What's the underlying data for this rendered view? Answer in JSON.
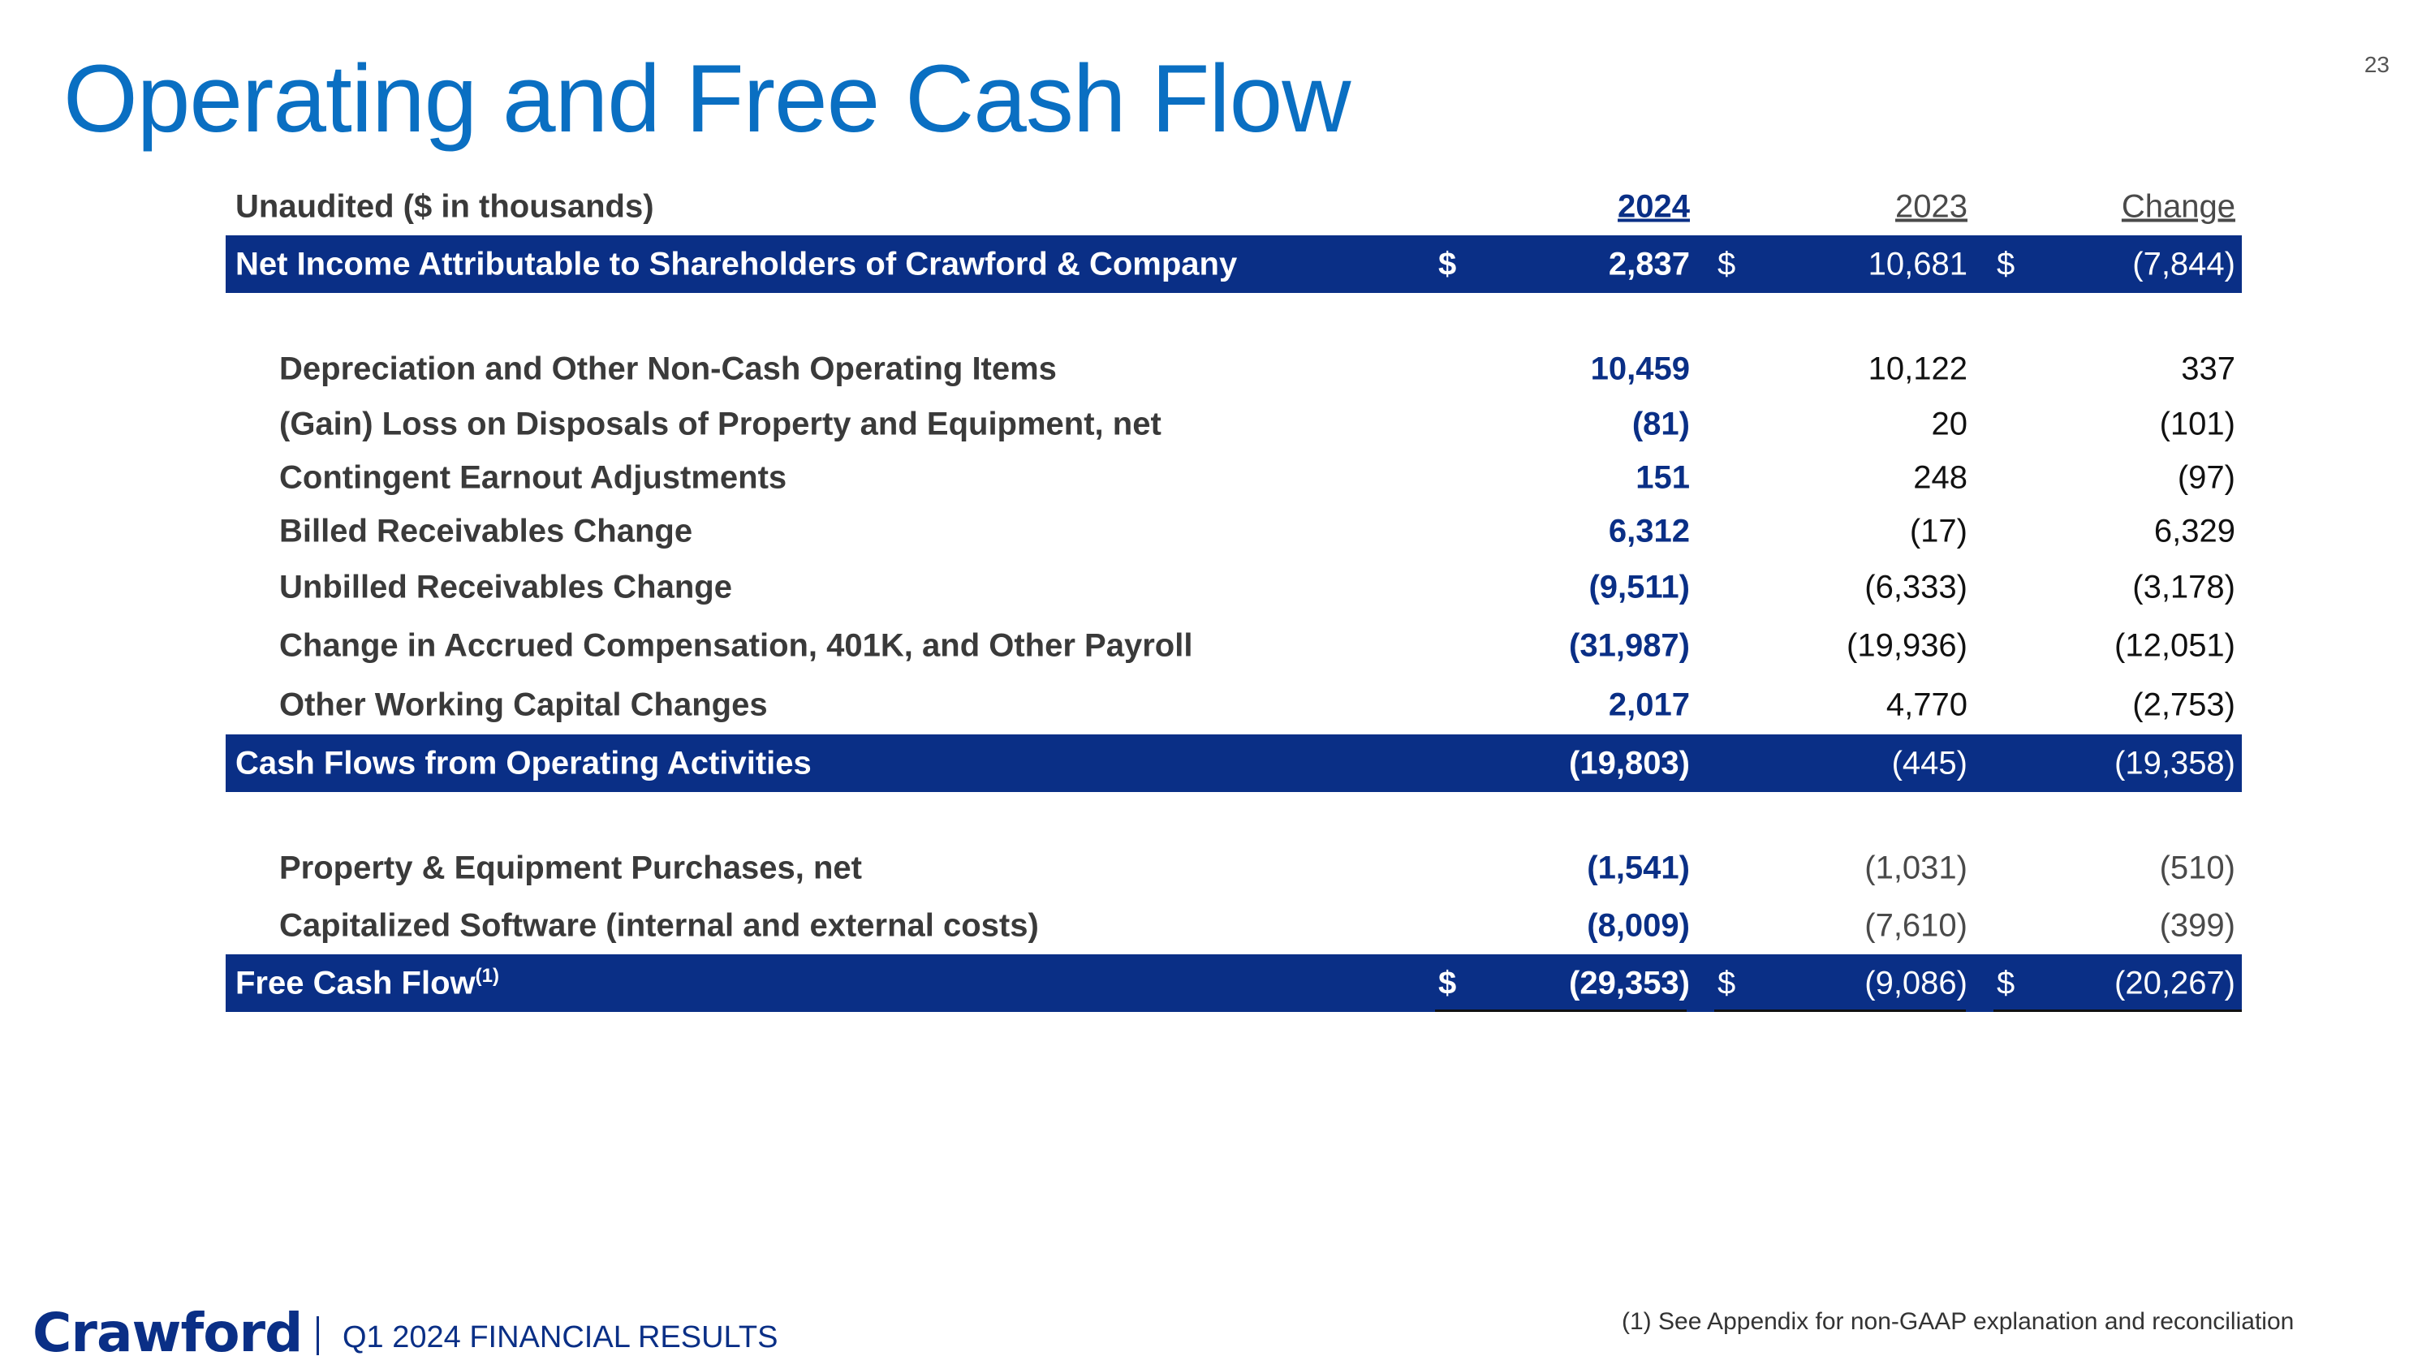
{
  "page_number": "23",
  "title": "Operating and Free Cash Flow",
  "table": {
    "header": {
      "label": "Unaudited ($ in thousands)",
      "col_2024": "2024",
      "col_2023": "2023",
      "col_change": "Change"
    },
    "net_income": {
      "label": "Net Income Attributable to Shareholders of Crawford & Company",
      "currency": "$",
      "v2024": "2,837",
      "v2023": "10,681",
      "change": "(7,844)"
    },
    "items": [
      {
        "label": "Depreciation and Other Non-Cash Operating Items",
        "v2024": "10,459",
        "v2023": "10,122",
        "change": "337"
      },
      {
        "label": "(Gain) Loss on Disposals of Property and Equipment, net",
        "v2024": "(81)",
        "v2023": "20",
        "change": "(101)"
      },
      {
        "label": "Contingent Earnout Adjustments",
        "v2024": "151",
        "v2023": "248",
        "change": "(97)"
      },
      {
        "label": "Billed Receivables Change",
        "v2024": "6,312",
        "v2023": "(17)",
        "change": "6,329"
      },
      {
        "label": "Unbilled Receivables Change",
        "v2024": "(9,511)",
        "v2023": "(6,333)",
        "change": "(3,178)"
      },
      {
        "label": "Change in Accrued Compensation, 401K, and Other Payroll",
        "v2024": "(31,987)",
        "v2023": "(19,936)",
        "change": "(12,051)"
      },
      {
        "label": "Other Working Capital Changes",
        "v2024": "2,017",
        "v2023": "4,770",
        "change": "(2,753)"
      }
    ],
    "operating": {
      "label": "Cash Flows from Operating Activities",
      "v2024": "(19,803)",
      "v2023": "(445)",
      "change": "(19,358)"
    },
    "capex": [
      {
        "label": "Property & Equipment Purchases, net",
        "v2024": "(1,541)",
        "v2023": "(1,031)",
        "change": "(510)"
      },
      {
        "label": "Capitalized Software (internal and external costs)",
        "v2024": "(8,009)",
        "v2023": "(7,610)",
        "change": "(399)"
      }
    ],
    "free_cash_flow": {
      "label": "Free Cash Flow",
      "footnote_marker": "(1)",
      "currency": "$",
      "v2024": "(29,353)",
      "v2023": "(9,086)",
      "change": "(20,267)"
    }
  },
  "footer": {
    "logo": "Crawford",
    "text": "Q1 2024 FINANCIAL RESULTS",
    "footnote": "(1) See Appendix for non-GAAP explanation and reconciliation"
  },
  "colors": {
    "title": "#0a6fc2",
    "band": "#0a2f86",
    "value_2024": "#0a2f86"
  }
}
